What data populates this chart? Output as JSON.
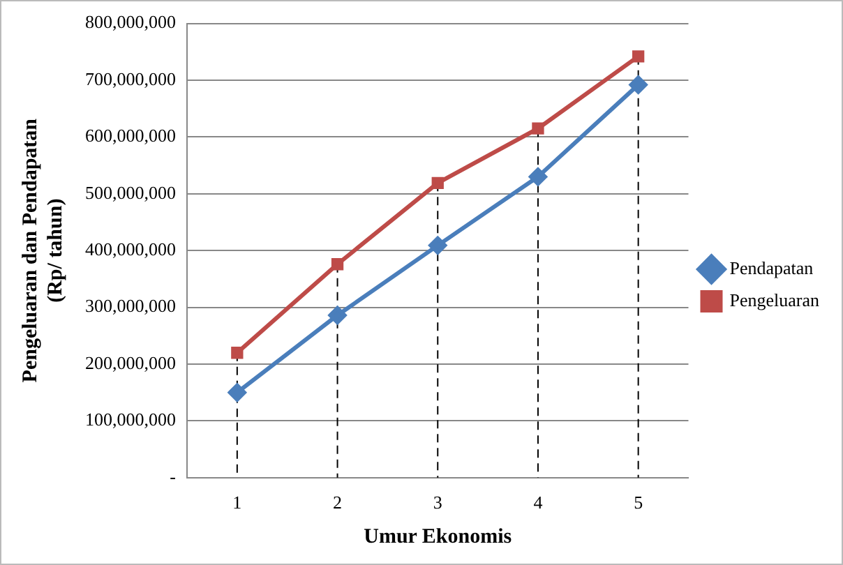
{
  "chart_data": {
    "type": "line",
    "xlabel": "Umur Ekonomis",
    "ylabel": "Pengeluaran dan Pendapatan\n(Rp/ tahun)",
    "categories": [
      "1",
      "2",
      "3",
      "4",
      "5"
    ],
    "series": [
      {
        "name": "Pendapatan",
        "color": "#4a7ebb",
        "marker": "diamond",
        "values": [
          150000000,
          286000000,
          409000000,
          530000000,
          692000000
        ]
      },
      {
        "name": "Pengeluaran",
        "color": "#be4b48",
        "marker": "square",
        "values": [
          220000000,
          376000000,
          519000000,
          615000000,
          742000000
        ]
      }
    ],
    "ylim": [
      0,
      800000000
    ],
    "yticks": [
      {
        "value": 0,
        "label": "-"
      },
      {
        "value": 100000000,
        "label": "100,000,000"
      },
      {
        "value": 200000000,
        "label": "200,000,000"
      },
      {
        "value": 300000000,
        "label": "300,000,000"
      },
      {
        "value": 400000000,
        "label": "400,000,000"
      },
      {
        "value": 500000000,
        "label": "500,000,000"
      },
      {
        "value": 600000000,
        "label": "600,000,000"
      },
      {
        "value": 700000000,
        "label": "700,000,000"
      },
      {
        "value": 800000000,
        "label": "800,000,000"
      }
    ],
    "ref_lines": [
      {
        "axis": "x",
        "value": "1",
        "color": "#000000",
        "line_style": "dashed"
      },
      {
        "axis": "x",
        "value": "2",
        "color": "#000000",
        "line_style": "dashed"
      },
      {
        "axis": "x",
        "value": "3",
        "color": "#000000",
        "line_style": "dashed"
      },
      {
        "axis": "x",
        "value": "4",
        "color": "#000000",
        "line_style": "dashed"
      },
      {
        "axis": "x",
        "value": "5",
        "color": "#000000",
        "line_style": "dashed"
      }
    ],
    "grid": "y",
    "legend": "right",
    "line_style": "solid"
  }
}
